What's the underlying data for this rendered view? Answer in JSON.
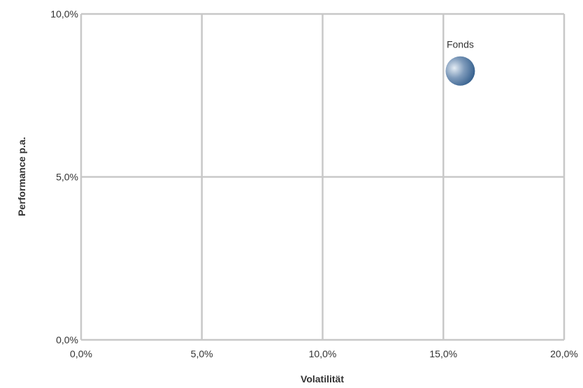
{
  "chart_data": {
    "type": "scatter",
    "xlabel": "Volatilität",
    "ylabel": "Performance p.a.",
    "xlim": [
      0,
      20
    ],
    "ylim": [
      0,
      10
    ],
    "x_ticks": [
      0,
      5,
      10,
      15,
      20
    ],
    "y_ticks": [
      0,
      5,
      10
    ],
    "x_tick_labels": [
      "0,0%",
      "5,0%",
      "10,0%",
      "15,0%",
      "20,0%"
    ],
    "y_tick_labels": [
      "0,0%",
      "5,0%",
      "10,0%"
    ],
    "grid": true,
    "points": [
      {
        "label": "Fonds",
        "x": 15.7,
        "y": 8.25,
        "color": "#2f5b8a"
      }
    ]
  },
  "colors": {
    "grid": "#c8c8c8",
    "axis_text": "#333333",
    "bubble_dark": "#2f5b8a",
    "bubble_light": "#e4ecf4"
  }
}
